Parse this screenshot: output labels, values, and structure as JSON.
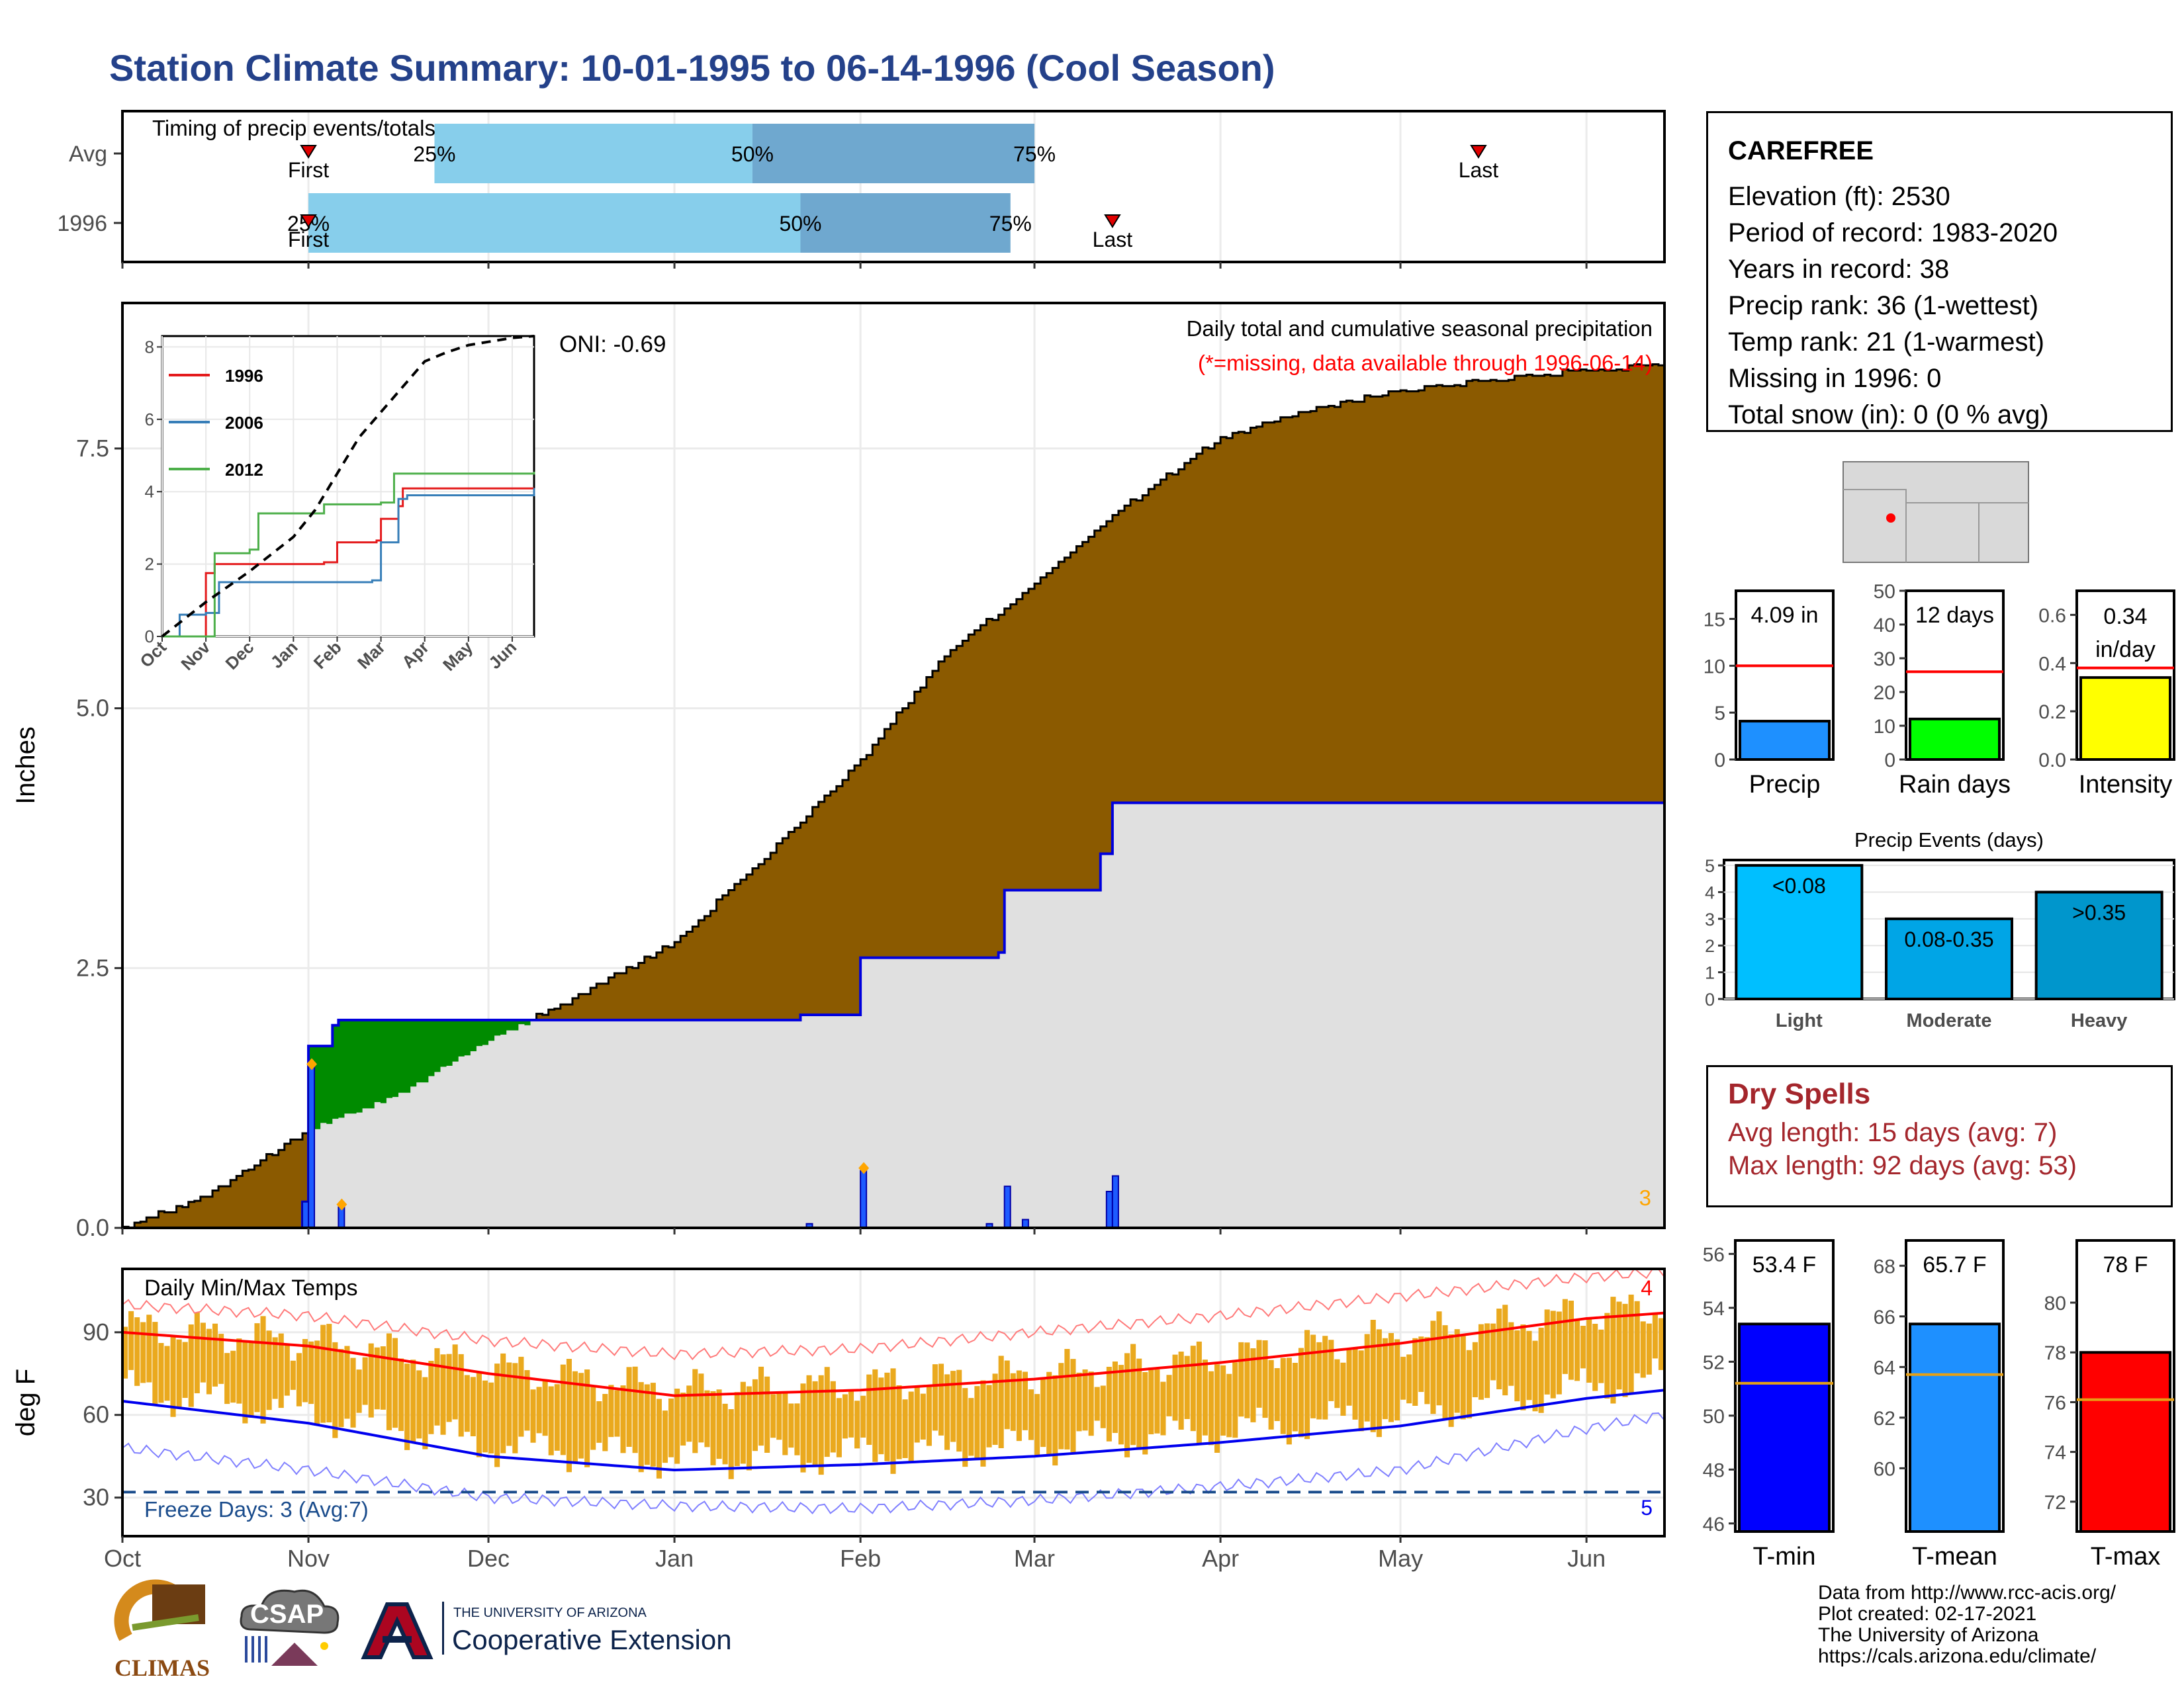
{
  "title": "Station Climate Summary: 10-01-1995 to 06-14-1996 (Cool Season)",
  "station": {
    "name": "CAREFREE",
    "lines": [
      "Elevation (ft): 2530",
      "Period of record: 1983-2020",
      "Years in record: 38",
      "Precip rank: 36 (1-wettest)",
      "Temp rank: 21 (1-warmest)",
      "Missing in 1996: 0",
      "Total snow (in): 0 (0 % avg)"
    ]
  },
  "dry_spells": {
    "title": "Dry Spells",
    "avg": "Avg length: 15 days (avg: 7)",
    "max": "Max length: 92 days (avg: 53)"
  },
  "credits": [
    "Data from http://www.rcc-acis.org/",
    "Plot created: 02-17-2021",
    "The University of Arizona",
    "https://cals.arizona.edu/climate/"
  ],
  "logos": {
    "climas": "CLIMAS",
    "csap": "CSAP",
    "ua_small": "THE UNIVERSITY OF ARIZONA",
    "ua_big": "Cooperative Extension"
  },
  "colors": {
    "cum_avg_fill": "#8b5a00",
    "cum_obs_fill": "#e0e0e0",
    "cum_obs_line": "#0000dd",
    "above_avg_fill": "#008b00",
    "temp_bar": "#eaa91e",
    "tmax_avg": "#ff0000",
    "tmin_avg": "#0000ee",
    "q25_fill": "#87ceeb",
    "q50_fill": "#6fa8cf",
    "title": "#24418a",
    "dry_text": "#a4262c"
  },
  "chart_data": [
    {
      "id": "timing",
      "type": "bar",
      "title": "Timing of precip events/totals",
      "rows": [
        {
          "name": "Avg",
          "p25": "11-22",
          "p50": "01-14",
          "p75": "03-01",
          "first": "11-01",
          "last": "05-14",
          "label25": "25%",
          "label50": "50%",
          "label75": "75%",
          "first_label": "First",
          "last_label": "Last"
        },
        {
          "name": "1996",
          "p25": "11-01",
          "p50": "01-22",
          "p75": "02-26",
          "first": "11-01",
          "last": "03-14",
          "label25": "25%",
          "label50": "50%",
          "label75": "75%",
          "first_label": "First",
          "last_label": "Last"
        }
      ],
      "x_ticks": [
        "Oct",
        "Nov",
        "Dec",
        "Jan",
        "Feb",
        "Mar",
        "Apr",
        "May",
        "Jun"
      ]
    },
    {
      "id": "cumulative",
      "type": "area",
      "title": "Daily total and cumulative seasonal precipitation",
      "subtitle": "(*=missing, data available through 1996-06-14)",
      "ylabel": "Inches",
      "ylim": [
        0,
        8.9
      ],
      "y_ticks": [
        0.0,
        2.5,
        5.0,
        7.5
      ],
      "y_tick_labels": [
        "0.0",
        "2.5",
        "5.0",
        "7.5"
      ],
      "oni": "ONI: -0.69",
      "corner_count": "3",
      "avg_cumulative": [
        [
          "10-01",
          0.0
        ],
        [
          "10-15",
          0.3
        ],
        [
          "11-01",
          0.95
        ],
        [
          "11-15",
          1.25
        ],
        [
          "12-01",
          1.8
        ],
        [
          "12-15",
          2.2
        ],
        [
          "01-01",
          2.75
        ],
        [
          "01-15",
          3.5
        ],
        [
          "02-01",
          4.5
        ],
        [
          "02-15",
          5.5
        ],
        [
          "03-01",
          6.2
        ],
        [
          "03-15",
          6.9
        ],
        [
          "04-01",
          7.6
        ],
        [
          "04-15",
          7.85
        ],
        [
          "05-01",
          8.05
        ],
        [
          "05-15",
          8.15
        ],
        [
          "06-01",
          8.25
        ],
        [
          "06-14",
          8.3
        ]
      ],
      "obs_cumulative": [
        [
          "10-01",
          0.0
        ],
        [
          "10-30",
          0.0
        ],
        [
          "10-31",
          0.25
        ],
        [
          "11-01",
          1.75
        ],
        [
          "11-05",
          1.95
        ],
        [
          "11-06",
          2.0
        ],
        [
          "12-31",
          2.0
        ],
        [
          "01-22",
          2.05
        ],
        [
          "02-01",
          2.6
        ],
        [
          "02-24",
          2.65
        ],
        [
          "02-25",
          3.25
        ],
        [
          "03-12",
          3.6
        ],
        [
          "03-14",
          4.09
        ],
        [
          "06-14",
          4.09
        ]
      ],
      "daily_bars": [
        [
          "10-31",
          0.25
        ],
        [
          "11-01",
          1.55
        ],
        [
          "11-06",
          0.2
        ],
        [
          "01-23",
          0.04
        ],
        [
          "02-01",
          0.55
        ],
        [
          "02-22",
          0.04
        ],
        [
          "02-25",
          0.4
        ],
        [
          "02-28",
          0.08
        ],
        [
          "03-13",
          0.35
        ],
        [
          "03-14",
          0.5
        ]
      ],
      "missing_markers": [
        "11-01",
        "11-06",
        "02-01"
      ],
      "x_ticks": [
        "Oct",
        "Nov",
        "Dec",
        "Jan",
        "Feb",
        "Mar",
        "Apr",
        "May",
        "Jun"
      ]
    },
    {
      "id": "inset",
      "type": "line",
      "ylim": [
        0,
        8.3
      ],
      "y_ticks": [
        "0",
        "2",
        "4",
        "6",
        "8"
      ],
      "x_ticks": [
        "Oct",
        "Nov",
        "Dec",
        "Jan",
        "Feb",
        "Mar",
        "Apr",
        "May",
        "Jun"
      ],
      "series": [
        {
          "name": "1996",
          "color": "#e41a1c",
          "points": [
            [
              0,
              0
            ],
            [
              0.8,
              0
            ],
            [
              1.0,
              1.75
            ],
            [
              1.2,
              2.0
            ],
            [
              3.7,
              2.05
            ],
            [
              4.0,
              2.6
            ],
            [
              4.9,
              2.65
            ],
            [
              5.0,
              3.25
            ],
            [
              5.4,
              3.6
            ],
            [
              5.5,
              4.09
            ],
            [
              8.5,
              4.09
            ]
          ]
        },
        {
          "name": "2006",
          "color": "#377eb8",
          "points": [
            [
              0,
              0
            ],
            [
              0.4,
              0.6
            ],
            [
              1.0,
              0.65
            ],
            [
              1.3,
              1.5
            ],
            [
              4.8,
              1.55
            ],
            [
              5.0,
              2.6
            ],
            [
              5.4,
              3.8
            ],
            [
              5.6,
              3.9
            ],
            [
              8.5,
              4.1
            ]
          ]
        },
        {
          "name": "2012",
          "color": "#4daf4a",
          "points": [
            [
              0,
              0
            ],
            [
              1.0,
              0
            ],
            [
              1.2,
              2.3
            ],
            [
              2.0,
              2.4
            ],
            [
              2.2,
              3.4
            ],
            [
              3.5,
              3.4
            ],
            [
              3.7,
              3.65
            ],
            [
              5.0,
              3.7
            ],
            [
              5.3,
              4.5
            ],
            [
              8.5,
              4.55
            ]
          ]
        },
        {
          "name": "avg",
          "color": "#000000",
          "dashed": true,
          "points": [
            [
              0,
              0
            ],
            [
              1,
              0.95
            ],
            [
              2,
              1.8
            ],
            [
              3,
              2.75
            ],
            [
              3.5,
              3.5
            ],
            [
              4,
              4.5
            ],
            [
              4.5,
              5.5
            ],
            [
              5,
              6.2
            ],
            [
              5.5,
              6.9
            ],
            [
              6,
              7.6
            ],
            [
              6.5,
              7.85
            ],
            [
              7,
              8.05
            ],
            [
              7.5,
              8.15
            ],
            [
              8,
              8.25
            ],
            [
              8.5,
              8.3
            ]
          ]
        }
      ]
    },
    {
      "id": "precip_total",
      "type": "bar",
      "label": "4.09 in",
      "xlabel": "Precip",
      "value": 4.09,
      "avg": 10.0,
      "ylim": [
        0,
        18
      ],
      "y_ticks": [
        "0",
        "5",
        "10",
        "15"
      ],
      "color": "#1e90ff"
    },
    {
      "id": "rain_days",
      "type": "bar",
      "label": "12 days",
      "xlabel": "Rain days",
      "value": 12,
      "avg": 26,
      "ylim": [
        0,
        50
      ],
      "y_ticks": [
        "0",
        "10",
        "20",
        "30",
        "40",
        "50"
      ],
      "color": "#00ff00"
    },
    {
      "id": "intensity",
      "type": "bar",
      "label": "0.34",
      "label2": "in/day",
      "xlabel": "Intensity",
      "value": 0.34,
      "avg": 0.38,
      "ylim": [
        0,
        0.7
      ],
      "y_ticks": [
        "0.0",
        "0.2",
        "0.4",
        "0.6"
      ],
      "color": "#ffff00"
    },
    {
      "id": "events",
      "type": "bar",
      "title": "Precip Events (days)",
      "categories": [
        "Light",
        "Moderate",
        "Heavy"
      ],
      "labels": [
        "<0.08",
        "0.08-0.35",
        ">0.35"
      ],
      "values": [
        5,
        3,
        4
      ],
      "ylim": [
        0,
        5.2
      ],
      "y_ticks": [
        "0",
        "1",
        "2",
        "3",
        "4",
        "5"
      ],
      "colors": [
        "#00bfff",
        "#00a5e6",
        "#0096cc"
      ]
    },
    {
      "id": "temps",
      "type": "bar",
      "title": "Daily Min/Max Temps",
      "ylabel": "deg F",
      "ylim": [
        16,
        113
      ],
      "y_ticks": [
        "30",
        "60",
        "90"
      ],
      "freeze_text": "Freeze Days: 3 (Avg:7)",
      "freeze_level": 32,
      "count_top": "4",
      "count_bottom": "5",
      "tmax_avg": [
        [
          "10-01",
          90
        ],
        [
          "11-01",
          85
        ],
        [
          "12-01",
          75
        ],
        [
          "01-01",
          67
        ],
        [
          "02-01",
          69
        ],
        [
          "03-01",
          73
        ],
        [
          "04-01",
          79
        ],
        [
          "05-01",
          86
        ],
        [
          "06-01",
          95
        ],
        [
          "06-14",
          97
        ]
      ],
      "tmin_avg": [
        [
          "10-01",
          65
        ],
        [
          "11-01",
          57
        ],
        [
          "12-01",
          45
        ],
        [
          "01-01",
          40
        ],
        [
          "02-01",
          42
        ],
        [
          "03-01",
          45
        ],
        [
          "04-01",
          50
        ],
        [
          "05-01",
          56
        ],
        [
          "06-01",
          66
        ],
        [
          "06-14",
          69
        ]
      ],
      "record_high": [
        [
          "10-01",
          100
        ],
        [
          "11-01",
          96
        ],
        [
          "12-01",
          87
        ],
        [
          "01-01",
          82
        ],
        [
          "02-01",
          84
        ],
        [
          "03-01",
          90
        ],
        [
          "04-01",
          96
        ],
        [
          "05-01",
          103
        ],
        [
          "06-01",
          110
        ],
        [
          "06-14",
          112
        ]
      ],
      "record_low": [
        [
          "10-01",
          48
        ],
        [
          "11-01",
          40
        ],
        [
          "12-01",
          30
        ],
        [
          "01-01",
          27
        ],
        [
          "02-01",
          26
        ],
        [
          "03-01",
          29
        ],
        [
          "04-01",
          34
        ],
        [
          "05-01",
          40
        ],
        [
          "06-01",
          55
        ],
        [
          "06-14",
          60
        ]
      ],
      "x_ticks": [
        "Oct",
        "Nov",
        "Dec",
        "Jan",
        "Feb",
        "Mar",
        "Apr",
        "May",
        "Jun"
      ]
    },
    {
      "id": "tmin",
      "type": "bar",
      "label": "53.4 F",
      "xlabel": "T-min",
      "value": 53.4,
      "avg": 51.2,
      "ylim": [
        45.7,
        56.5
      ],
      "y_ticks": [
        "46",
        "48",
        "50",
        "52",
        "54",
        "56"
      ],
      "color": "#0000ff"
    },
    {
      "id": "tmean",
      "type": "bar",
      "label": "65.7 F",
      "xlabel": "T-mean",
      "value": 65.7,
      "avg": 63.7,
      "ylim": [
        57.5,
        69.0
      ],
      "y_ticks": [
        "60",
        "62",
        "64",
        "66",
        "68"
      ],
      "color": "#1e90ff"
    },
    {
      "id": "tmax",
      "type": "bar",
      "label": "78 F",
      "xlabel": "T-max",
      "value": 78.0,
      "avg": 76.1,
      "ylim": [
        70.8,
        82.5
      ],
      "y_ticks": [
        "72",
        "74",
        "76",
        "78",
        "80"
      ],
      "color": "#ff0000"
    }
  ]
}
